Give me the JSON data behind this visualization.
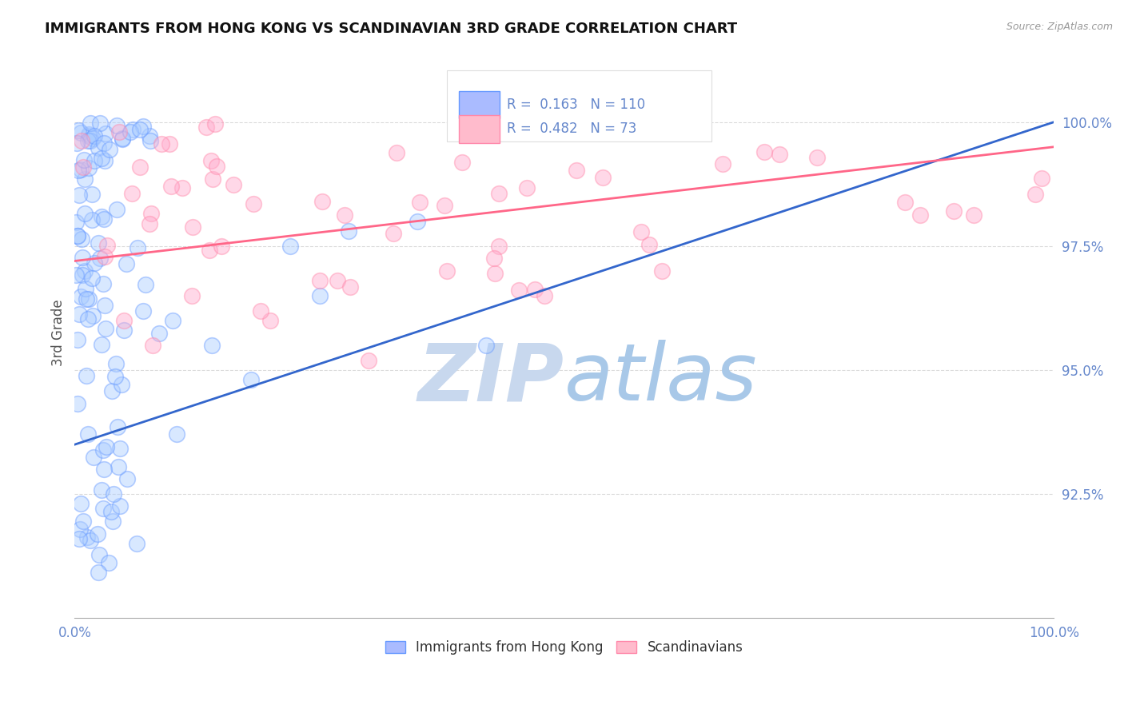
{
  "title": "IMMIGRANTS FROM HONG KONG VS SCANDINAVIAN 3RD GRADE CORRELATION CHART",
  "source_text": "Source: ZipAtlas.com",
  "ylabel": "3rd Grade",
  "y_ticks": [
    92.5,
    95.0,
    97.5,
    100.0
  ],
  "ylim": [
    90.0,
    101.5
  ],
  "xlim": [
    0,
    100
  ],
  "legend_entries": [
    {
      "label": "Immigrants from Hong Kong",
      "color_face": "#aabbff",
      "color_edge": "#6699ff",
      "R": "0.163",
      "N": "110"
    },
    {
      "label": "Scandinavians",
      "color_face": "#ffbbcc",
      "color_edge": "#ff88aa",
      "R": "0.482",
      "N": "73"
    }
  ],
  "watermark_zip": "ZIP",
  "watermark_atlas": "atlas",
  "watermark_color_zip": "#c8d8ee",
  "watermark_color_atlas": "#a8c8e8",
  "background_color": "#ffffff",
  "title_color": "#111111",
  "tick_label_color": "#6688cc",
  "ylabel_color": "#555555",
  "grid_color": "#cccccc",
  "blue_line_color": "#3366cc",
  "pink_line_color": "#ff6688",
  "blue_line_x": [
    0,
    100
  ],
  "blue_line_y": [
    93.5,
    100.0
  ],
  "pink_line_x": [
    0,
    100
  ],
  "pink_line_y": [
    97.2,
    99.5
  ]
}
